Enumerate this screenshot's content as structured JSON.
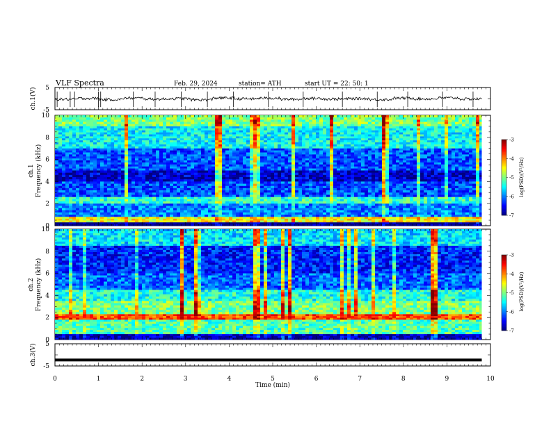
{
  "header": {
    "title": "VLF  Spectra",
    "date": "Feb. 29, 2024",
    "station": "station= ATH",
    "start": "start  UT  =   22: 50: 1"
  },
  "chart_data": [
    {
      "type": "line",
      "panel": "ch1-waveform",
      "ylabel": "ch.1(V)",
      "ylim": [
        -5,
        5
      ],
      "yticks": [
        "5",
        "-5"
      ],
      "x_range_min": [
        0,
        9.8
      ],
      "series": [
        {
          "values": [
            -0.3,
            0.1,
            -0.4,
            0.2,
            -0.2,
            0.0,
            -0.5,
            0.3,
            -0.1,
            0.2,
            -0.3,
            0.1,
            -0.2,
            0.0,
            -0.4,
            0.2,
            -0.1,
            0.3,
            -0.2,
            0.1
          ]
        }
      ],
      "spikes_min": [
        0.05,
        0.35,
        0.45,
        1.0,
        1.05,
        1.8,
        2.3,
        2.9,
        3.5,
        4.1,
        4.9,
        5.7,
        6.6,
        7.4,
        8.1,
        8.9,
        9.6
      ]
    },
    {
      "type": "heatmap",
      "panel": "ch1-spectrogram",
      "ylabel": "ch.1\nFrequency (kHz)",
      "ylabel_line1": "ch.1",
      "ylabel_line2": "Frequency (kHz)",
      "ylim": [
        0,
        10
      ],
      "yticks": [
        "0",
        "2",
        "4",
        "6",
        "8",
        "10"
      ],
      "bands": [
        {
          "f_min": 9.0,
          "f_max": 10.0,
          "level": -5.0
        },
        {
          "f_min": 7.0,
          "f_max": 9.0,
          "level": -5.5
        },
        {
          "f_min": 5.0,
          "f_max": 7.0,
          "level": -6.2
        },
        {
          "f_min": 4.0,
          "f_max": 5.0,
          "level": -6.7
        },
        {
          "f_min": 2.6,
          "f_max": 4.0,
          "level": -6.2
        },
        {
          "f_min": 2.0,
          "f_max": 2.6,
          "level": -5.3
        },
        {
          "f_min": 0.8,
          "f_max": 2.0,
          "level": -6.0
        },
        {
          "f_min": 0.3,
          "f_max": 0.8,
          "level": -4.5
        },
        {
          "f_min": 0.0,
          "f_max": 0.3,
          "level": -7.0
        }
      ],
      "colorbar": {
        "label": "log(PSD)(V²/Hz)",
        "ticks": [
          "-3",
          "-4",
          "-5",
          "-6",
          "-7"
        ],
        "range": [
          -7,
          -3
        ]
      }
    },
    {
      "type": "heatmap",
      "panel": "ch2-spectrogram",
      "ylabel_line1": "ch.2",
      "ylabel_line2": "Frequency (kHz)",
      "ylim": [
        0,
        10
      ],
      "yticks": [
        "0",
        "2",
        "4",
        "6",
        "8",
        "10"
      ],
      "bands": [
        {
          "f_min": 8.5,
          "f_max": 10.0,
          "level": -5.6
        },
        {
          "f_min": 6.0,
          "f_max": 8.5,
          "level": -6.4
        },
        {
          "f_min": 4.5,
          "f_max": 6.0,
          "level": -6.1
        },
        {
          "f_min": 3.5,
          "f_max": 4.5,
          "level": -5.4
        },
        {
          "f_min": 2.3,
          "f_max": 3.5,
          "level": -5.0
        },
        {
          "f_min": 1.8,
          "f_max": 2.3,
          "level": -3.8
        },
        {
          "f_min": 0.5,
          "f_max": 1.8,
          "level": -5.2
        },
        {
          "f_min": 0.0,
          "f_max": 0.5,
          "level": -6.8
        }
      ],
      "colorbar": {
        "label": "log(PSD)(V²/Hz)",
        "ticks": [
          "-3",
          "-4",
          "-5",
          "-6",
          "-7"
        ],
        "range": [
          -7,
          -3
        ]
      }
    },
    {
      "type": "line",
      "panel": "ch3-waveform",
      "ylabel": "ch.3(V)",
      "ylim": [
        -5,
        5
      ],
      "yticks": [
        "5",
        "-5"
      ],
      "x_range_min": [
        0,
        9.8
      ],
      "series": [
        {
          "values": [
            -2.3,
            -2.3,
            -2.3,
            -2.3,
            -2.3
          ]
        }
      ]
    }
  ],
  "xaxis": {
    "label": "Time  (min)",
    "ticks": [
      "0",
      "1",
      "2",
      "3",
      "4",
      "5",
      "6",
      "7",
      "8",
      "9",
      "10"
    ],
    "range": [
      0,
      10
    ]
  },
  "colors": {
    "frame": "#000000",
    "background": "#ffffff"
  }
}
